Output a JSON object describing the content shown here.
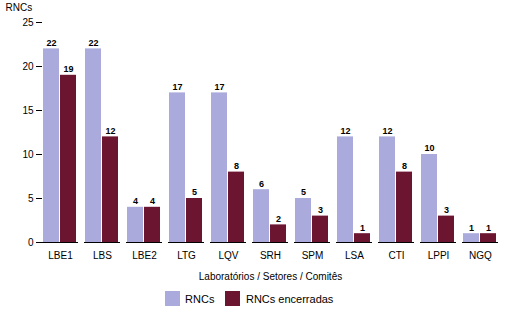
{
  "chart_data": {
    "type": "bar",
    "categories": [
      "LBE1",
      "LBS",
      "LBE2",
      "LTG",
      "LQV",
      "SRH",
      "SPM",
      "LSA",
      "CTI",
      "LPPI",
      "NGQ"
    ],
    "series": [
      {
        "name": "RNCs",
        "color": "#aaaadd",
        "values": [
          22,
          22,
          4,
          17,
          17,
          6,
          5,
          12,
          12,
          10,
          1
        ]
      },
      {
        "name": "RNCs encerradas",
        "color": "#6b1530",
        "values": [
          19,
          12,
          4,
          5,
          8,
          2,
          3,
          1,
          8,
          3,
          1
        ]
      }
    ],
    "xlabel": "Laboratórios / Setores / Comitês",
    "ylabel": "RNCs",
    "ylim": [
      0,
      25
    ],
    "yticks": [
      0,
      5,
      10,
      15,
      20,
      25
    ],
    "grid": false,
    "data_labels": true,
    "legend": "bottom"
  }
}
